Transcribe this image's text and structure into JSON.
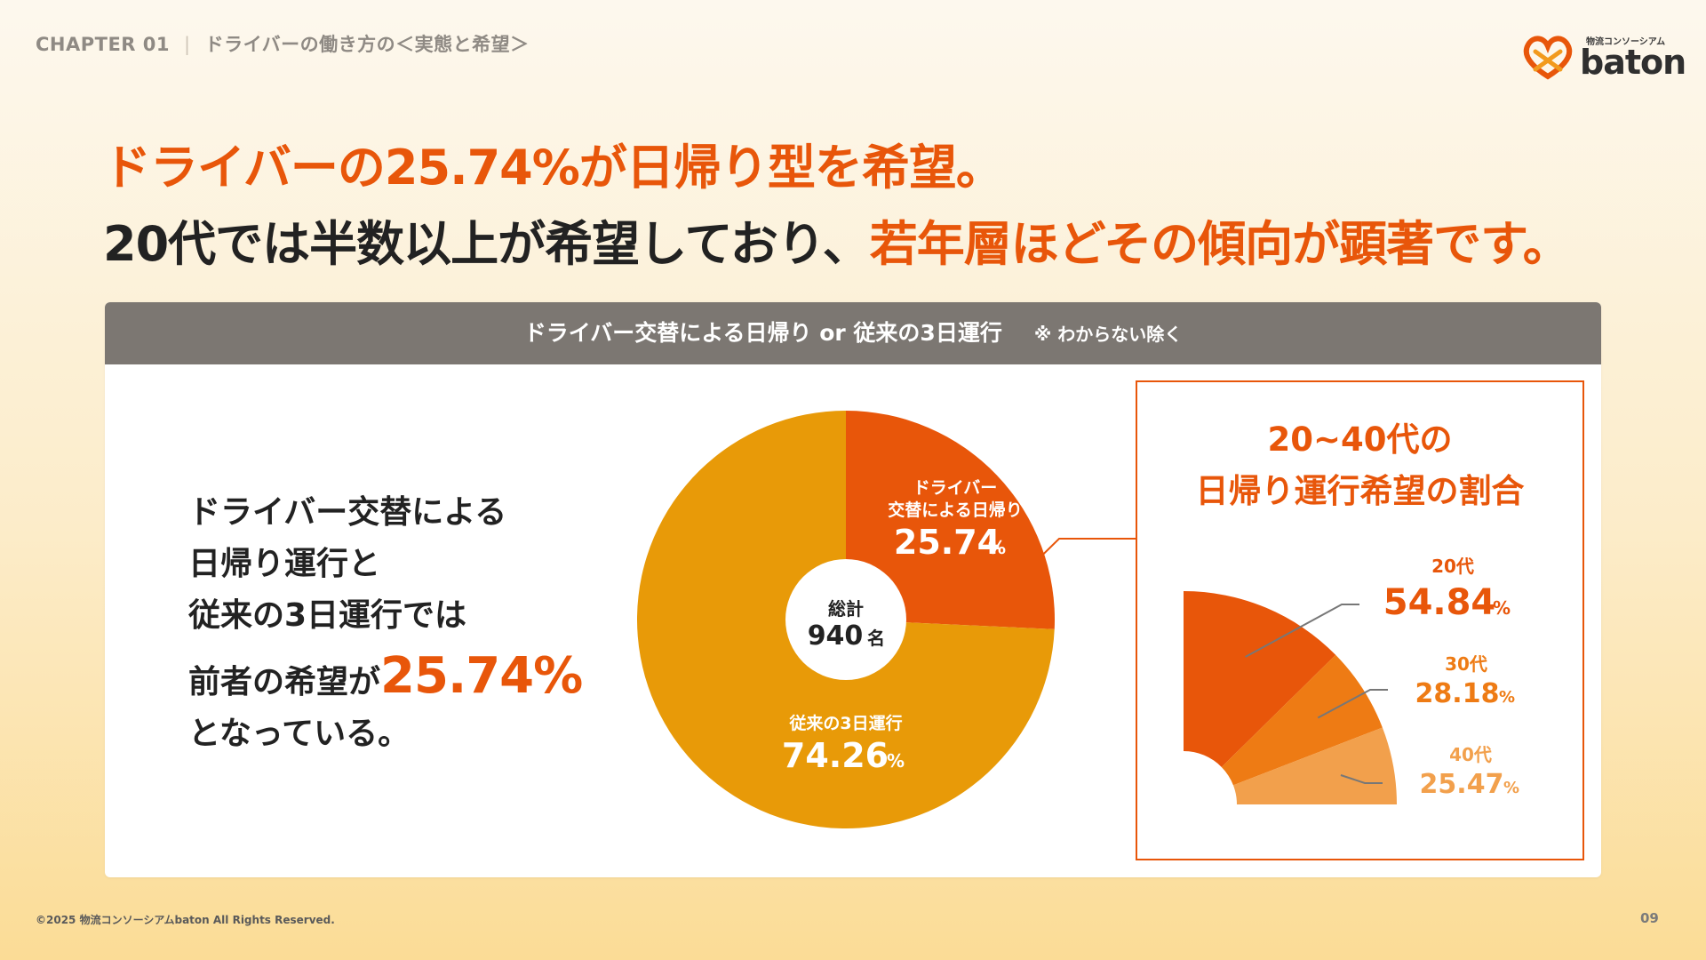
{
  "header": {
    "chapter": "CHAPTER 01",
    "section": "ドライバーの働き方の＜実態と希望＞"
  },
  "logo": {
    "sub": "物流コンソーシアム",
    "name": "baton",
    "brand_color": "#e8560a"
  },
  "headline": {
    "line1": "ドライバーの25.74%が日帰り型を希望。",
    "line2_a": "20代では半数以上が希望しており、",
    "line2_b": "若年層ほどその傾向が顕著です。"
  },
  "panel": {
    "title": "ドライバー交替による日帰り or 従来の3日運行",
    "note": "※ わからない除く"
  },
  "summary": {
    "line1": "ドライバー交替による",
    "line2": "日帰り運行と",
    "line3": "従来の3日運行では",
    "line4_a": "前者の希望が",
    "line4_big": "25.74%",
    "line5": "となっている。"
  },
  "chart_data": [
    {
      "type": "pie",
      "title": "ドライバー交替による日帰り or 従来の3日運行",
      "center_label": "総計",
      "center_value": "940",
      "center_unit": "名",
      "slices": [
        {
          "label_line1": "ドライバー",
          "label_line2": "交替による日帰り",
          "value": 25.74,
          "display": "25.74",
          "unit": "%",
          "color": "#e8560a"
        },
        {
          "label_line1": "従来の3日運行",
          "label_line2": "",
          "value": 74.26,
          "display": "74.26",
          "unit": "%",
          "color": "#e89a08"
        }
      ]
    },
    {
      "type": "bar",
      "title_line1": "20~40代の",
      "title_line2": "日帰り運行希望の割合",
      "categories": [
        "20代",
        "30代",
        "40代"
      ],
      "values": [
        54.84,
        28.18,
        25.47
      ],
      "displays": [
        "54.84",
        "28.18",
        "25.47"
      ],
      "unit": "%",
      "colors": [
        "#e8560a",
        "#ee7b14",
        "#f2a04c"
      ]
    }
  ],
  "footer": {
    "copyright": "©2025 物流コンソーシアムbaton All Rights Reserved.",
    "page": "09"
  }
}
